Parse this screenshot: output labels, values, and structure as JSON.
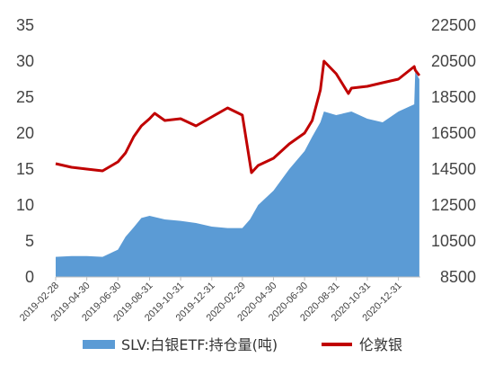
{
  "chart_data": {
    "type": "area",
    "title": "",
    "xlabel": "",
    "ylabel": "",
    "y2label": "",
    "grid": false,
    "legend_position": "bottom",
    "x_tick_labels": [
      "2019-02-28",
      "2019-04-30",
      "2019-06-30",
      "2019-08-31",
      "2019-10-31",
      "2019-12-31",
      "2020-02-29",
      "2020-04-30",
      "2020-06-30",
      "2020-08-31",
      "2020-10-31",
      "2020-12-31"
    ],
    "y_left": {
      "min": 0,
      "max": 35,
      "ticks": [
        "0",
        "5",
        "10",
        "15",
        "20",
        "25",
        "30",
        "35"
      ]
    },
    "y_right": {
      "min": 8500,
      "max": 22500,
      "ticks": [
        "8500",
        "10500",
        "12500",
        "14500",
        "16500",
        "18500",
        "20500",
        "22500"
      ]
    },
    "series": [
      {
        "name": "SLV:白银ETF:持仓量(吨)",
        "kind": "area",
        "axis": "left",
        "color": "#5b9bd5",
        "x": [
          "2019-02-28",
          "2019-03-31",
          "2019-04-30",
          "2019-05-31",
          "2019-06-15",
          "2019-06-30",
          "2019-07-15",
          "2019-07-31",
          "2019-08-15",
          "2019-08-31",
          "2019-09-30",
          "2019-10-31",
          "2019-11-30",
          "2019-12-31",
          "2020-01-31",
          "2020-02-29",
          "2020-03-15",
          "2020-03-31",
          "2020-04-30",
          "2020-05-31",
          "2020-06-30",
          "2020-07-15",
          "2020-07-31",
          "2020-08-07",
          "2020-08-31",
          "2020-09-30",
          "2020-10-31",
          "2020-11-30",
          "2020-12-31",
          "2021-01-31",
          "2021-02-02",
          "2021-02-10"
        ],
        "values": [
          2.8,
          2.9,
          2.9,
          2.8,
          3.3,
          3.8,
          5.6,
          6.9,
          8.2,
          8.5,
          8.0,
          7.8,
          7.5,
          7.0,
          6.8,
          6.8,
          8.0,
          10.0,
          12.0,
          15.0,
          17.5,
          19.5,
          21.5,
          23.0,
          22.5,
          23.0,
          22.0,
          21.5,
          23.0,
          24.0,
          28.5,
          27.5
        ]
      },
      {
        "name": "伦敦银",
        "kind": "line",
        "axis": "right",
        "color": "#c00000",
        "x": [
          "2019-02-28",
          "2019-03-31",
          "2019-04-30",
          "2019-05-31",
          "2019-06-30",
          "2019-07-15",
          "2019-07-31",
          "2019-08-15",
          "2019-08-31",
          "2019-09-10",
          "2019-09-30",
          "2019-10-31",
          "2019-11-30",
          "2019-12-31",
          "2020-01-31",
          "2020-02-29",
          "2020-03-18",
          "2020-03-31",
          "2020-04-30",
          "2020-05-31",
          "2020-06-30",
          "2020-07-15",
          "2020-07-31",
          "2020-08-07",
          "2020-08-31",
          "2020-09-24",
          "2020-09-30",
          "2020-10-31",
          "2020-11-30",
          "2020-12-31",
          "2021-01-31",
          "2021-02-02",
          "2021-02-10"
        ],
        "values": [
          14800,
          14600,
          14500,
          14400,
          14900,
          15400,
          16300,
          16900,
          17300,
          17600,
          17200,
          17300,
          16900,
          17400,
          17900,
          17500,
          14300,
          14700,
          15100,
          15900,
          16500,
          17200,
          18900,
          20500,
          19800,
          18700,
          19000,
          19100,
          19300,
          19500,
          20200,
          20000,
          19700
        ]
      }
    ]
  }
}
